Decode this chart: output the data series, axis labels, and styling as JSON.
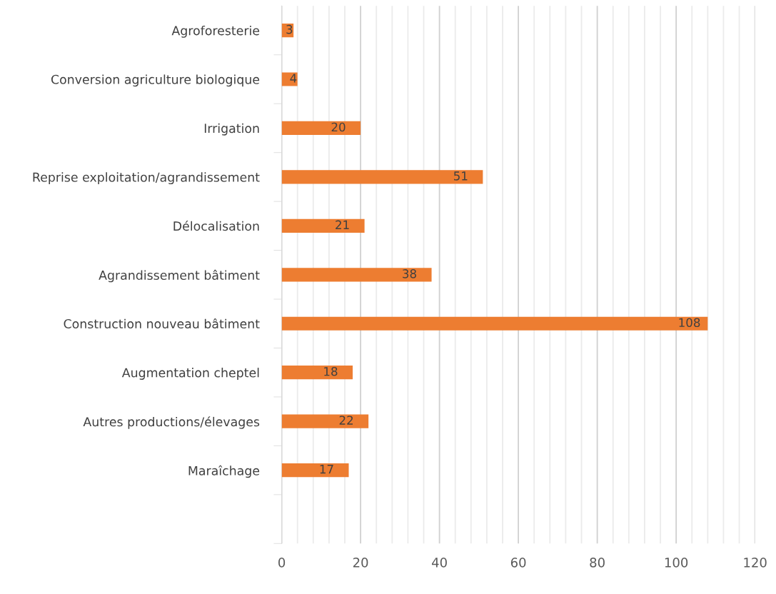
{
  "chart_data": {
    "type": "bar",
    "orientation": "horizontal",
    "categories": [
      "Agroforesterie",
      "Conversion agriculture biologique",
      "Irrigation",
      "Reprise exploitation/agrandissement",
      "Délocalisation",
      "Agrandissement bâtiment",
      "Construction nouveau bâtiment",
      "Augmentation cheptel",
      "Autres productions/élevages",
      "Maraîchage",
      null
    ],
    "values": [
      3,
      4,
      20,
      51,
      21,
      38,
      108,
      18,
      22,
      17,
      null
    ],
    "color": "#ed7d31",
    "data_labels": true,
    "grid": "x",
    "legend": false,
    "xlim": [
      0,
      120
    ],
    "xticks": [
      0,
      {
        "value": 4,
        "label": null
      },
      {
        "value": 8,
        "label": null
      },
      {
        "value": 12,
        "label": null
      },
      {
        "value": 16,
        "label": null
      },
      20,
      {
        "value": 24,
        "label": null
      },
      {
        "value": 28,
        "label": null
      },
      {
        "value": 32,
        "label": null
      },
      {
        "value": 36,
        "label": null
      },
      40,
      {
        "value": 44,
        "label": null
      },
      {
        "value": 48,
        "label": null
      },
      {
        "value": 52,
        "label": null
      },
      {
        "value": 56,
        "label": null
      },
      60,
      {
        "value": 64,
        "label": null
      },
      {
        "value": 68,
        "label": null
      },
      {
        "value": 72,
        "label": null
      },
      {
        "value": 76,
        "label": null
      },
      80,
      {
        "value": 84,
        "label": null
      },
      {
        "value": 88,
        "label": null
      },
      {
        "value": 92,
        "label": null
      },
      {
        "value": 96,
        "label": null
      },
      100,
      {
        "value": 104,
        "label": null
      },
      {
        "value": 108,
        "label": null
      },
      {
        "value": 112,
        "label": null
      },
      {
        "value": 116,
        "label": null
      },
      120
    ]
  }
}
